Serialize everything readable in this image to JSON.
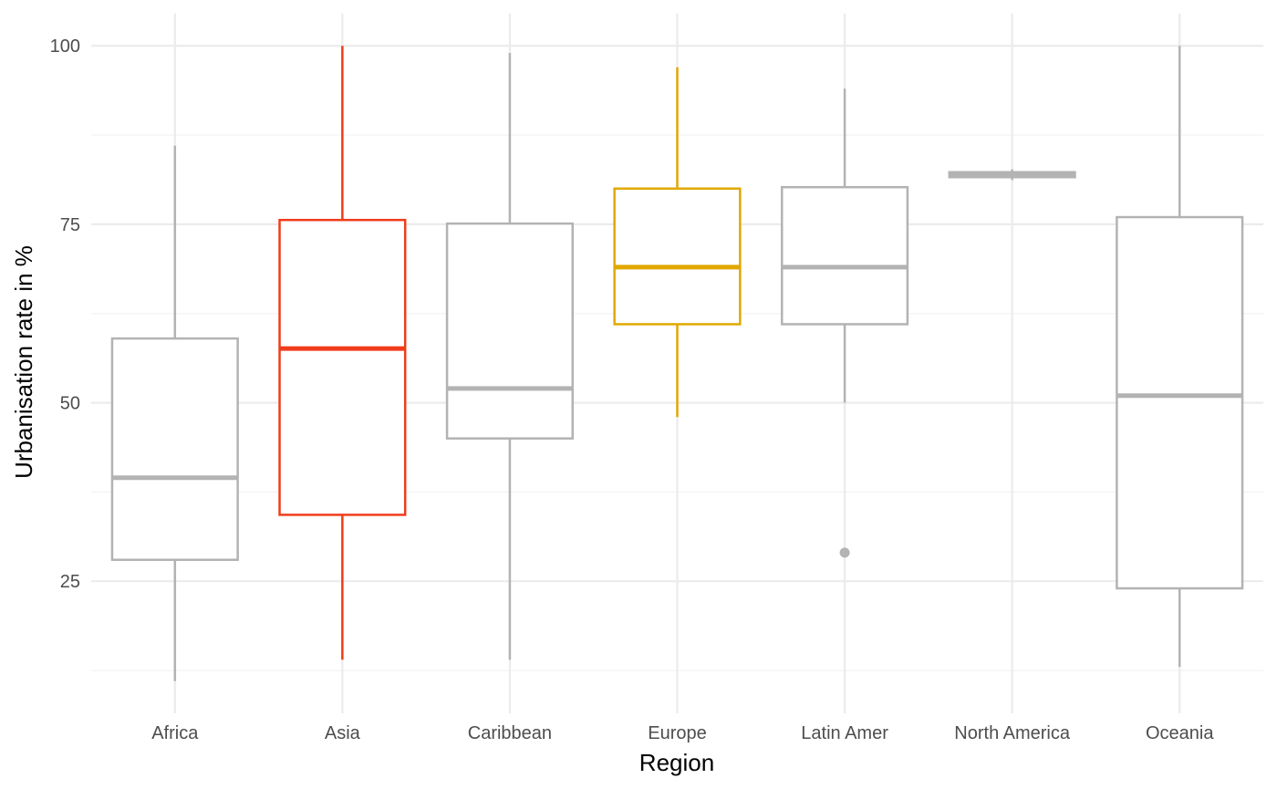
{
  "chart_data": {
    "type": "boxplot",
    "xlabel": "Region",
    "ylabel": "Urbanisation rate in %",
    "ylim": [
      6.5,
      104.5
    ],
    "y_ticks": [
      25,
      50,
      75,
      100
    ],
    "y_minor_ticks": [
      12.5,
      37.5,
      62.5,
      87.5
    ],
    "grid": true,
    "categories": [
      "Africa",
      "Asia",
      "Caribbean",
      "Europe",
      "Latin Amer",
      "North America",
      "Oceania"
    ],
    "boxes": [
      {
        "category": "Africa",
        "lower_whisker": 11,
        "q1": 28,
        "median": 39.5,
        "q3": 59,
        "upper_whisker": 86,
        "outliers": [],
        "color": "#b3b3b3"
      },
      {
        "category": "Asia",
        "lower_whisker": 14,
        "q1": 34.3,
        "median": 57.6,
        "q3": 75.6,
        "upper_whisker": 100,
        "outliers": [],
        "color": "#f03c1c"
      },
      {
        "category": "Caribbean",
        "lower_whisker": 14,
        "q1": 45,
        "median": 52,
        "q3": 75.1,
        "upper_whisker": 99,
        "outliers": [],
        "color": "#b3b3b3"
      },
      {
        "category": "Europe",
        "lower_whisker": 48,
        "q1": 61,
        "median": 69,
        "q3": 80,
        "upper_whisker": 97,
        "outliers": [],
        "color": "#e1a800"
      },
      {
        "category": "Latin Amer",
        "lower_whisker": 50,
        "q1": 61,
        "median": 69,
        "q3": 80.2,
        "upper_whisker": 94,
        "outliers": [
          29
        ],
        "color": "#b3b3b3"
      },
      {
        "category": "North America",
        "lower_whisker": 81.2,
        "q1": 81.6,
        "median": 82,
        "q3": 82.3,
        "upper_whisker": 82.7,
        "outliers": [],
        "color": "#b3b3b3"
      },
      {
        "category": "Oceania",
        "lower_whisker": 13,
        "q1": 24,
        "median": 51,
        "q3": 76,
        "upper_whisker": 100,
        "outliers": [],
        "color": "#b3b3b3"
      }
    ]
  },
  "colors": {
    "background": "#ffffff",
    "grid_major": "#ebebeb",
    "grid_minor": "#f2f2f2",
    "tick_text": "#4d4d4d",
    "axis_title": "#000000"
  }
}
